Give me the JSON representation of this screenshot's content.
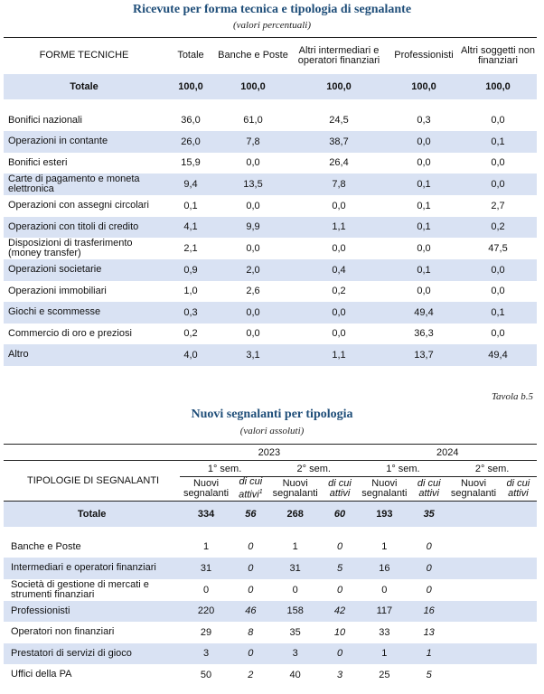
{
  "table1": {
    "title": "Ricevute per forma tecnica e tipologia di segnalante",
    "subtitle": "(valori percentuali)",
    "headers": [
      "FORME TECNICHE",
      "Totale",
      "Banche e Poste",
      "Altri intermediari e operatori finanziari",
      "Professionisti",
      "Altri soggetti non finanziari"
    ],
    "total_row": [
      "Totale",
      "100,0",
      "100,0",
      "100,0",
      "100,0",
      "100,0"
    ],
    "rows": [
      [
        "Bonifici nazionali",
        "36,0",
        "61,0",
        "24,5",
        "0,3",
        "0,0"
      ],
      [
        "Operazioni in contante",
        "26,0",
        "7,8",
        "38,7",
        "0,0",
        "0,1"
      ],
      [
        "Bonifici esteri",
        "15,9",
        "0,0",
        "26,4",
        "0,0",
        "0,0"
      ],
      [
        "Carte di pagamento e moneta elettronica",
        "9,4",
        "13,5",
        "7,8",
        "0,1",
        "0,0"
      ],
      [
        "Operazioni con assegni circolari",
        "0,1",
        "0,0",
        "0,0",
        "0,1",
        "2,7"
      ],
      [
        "Operazioni con titoli di credito",
        "4,1",
        "9,9",
        "1,1",
        "0,1",
        "0,2"
      ],
      [
        "Disposizioni di trasferimento (money transfer)",
        "2,1",
        "0,0",
        "0,0",
        "0,0",
        "47,5"
      ],
      [
        "Operazioni societarie",
        "0,9",
        "2,0",
        "0,4",
        "0,1",
        "0,0"
      ],
      [
        "Operazioni immobiliari",
        "1,0",
        "2,6",
        "0,2",
        "0,0",
        "0,0"
      ],
      [
        "Giochi e scommesse",
        "0,3",
        "0,0",
        "0,0",
        "49,4",
        "0,1"
      ],
      [
        "Commercio di oro e preziosi",
        "0,2",
        "0,0",
        "0,0",
        "36,3",
        "0,0"
      ],
      [
        "Altro",
        "4,0",
        "3,1",
        "1,1",
        "13,7",
        "49,4"
      ]
    ]
  },
  "table2": {
    "caption": "Tavola b.5",
    "title": "Nuovi segnalanti per tipologia",
    "subtitle": "(valori assoluti)",
    "row_header": "TIPOLOGIE DI SEGNALANTI",
    "years": [
      "2023",
      "2024"
    ],
    "semesters": [
      "1° sem.",
      "2° sem.",
      "1° sem.",
      "2° sem."
    ],
    "sub_new": "Nuovi segnalanti",
    "sub_active": "di cui attivi",
    "sup": "1",
    "total_row": [
      "Totale",
      "334",
      "56",
      "268",
      "60",
      "193",
      "35",
      "",
      ""
    ],
    "rows": [
      [
        "Banche e Poste",
        "1",
        "0",
        "1",
        "0",
        "1",
        "0",
        "",
        ""
      ],
      [
        "Intermediari e operatori finanziari",
        "31",
        "0",
        "31",
        "5",
        "16",
        "0",
        "",
        ""
      ],
      [
        "Società di gestione di mercati e strumenti finanziari",
        "0",
        "0",
        "0",
        "0",
        "0",
        "0",
        "",
        ""
      ],
      [
        "Professionisti",
        "220",
        "46",
        "158",
        "42",
        "117",
        "16",
        "",
        ""
      ],
      [
        "Operatori non finanziari",
        "29",
        "8",
        "35",
        "10",
        "33",
        "13",
        "",
        ""
      ],
      [
        "Prestatori di servizi di gioco",
        "3",
        "0",
        "3",
        "0",
        "1",
        "1",
        "",
        ""
      ],
      [
        "Uffici della PA",
        "50",
        "2",
        "40",
        "3",
        "25",
        "5",
        "",
        ""
      ]
    ]
  }
}
